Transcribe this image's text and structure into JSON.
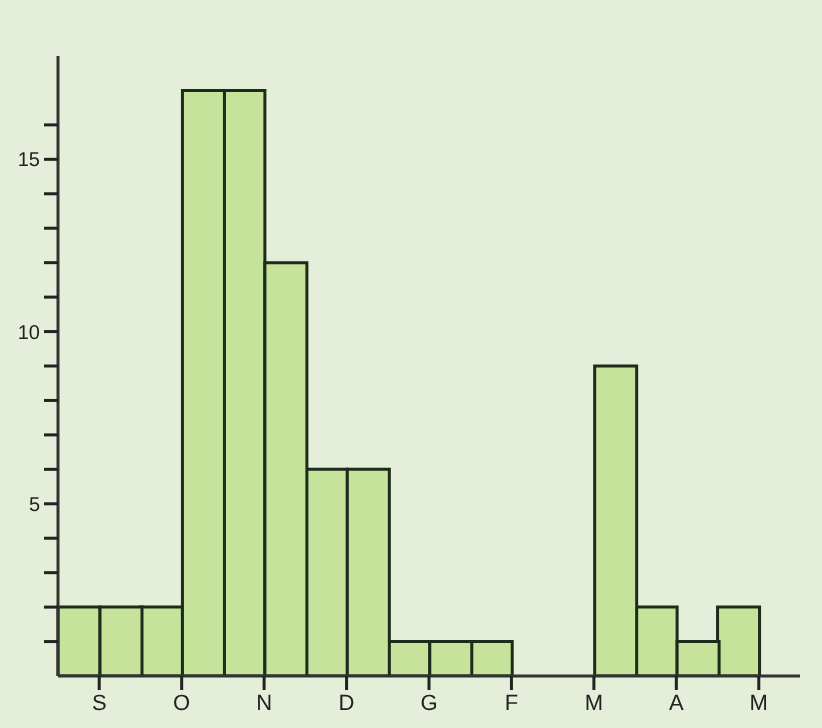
{
  "chart_data": {
    "type": "bar",
    "categories": [
      "S",
      "O",
      "N",
      "D",
      "G",
      "F",
      "M",
      "A",
      "M"
    ],
    "series": [
      {
        "color": "#c6e39b",
        "values": [
          2,
          2,
          17,
          6,
          1,
          1,
          0,
          2,
          2
        ]
      },
      {
        "color": "#c6e39b",
        "values": [
          2,
          17,
          12,
          6,
          1,
          0,
          9,
          1,
          null
        ]
      }
    ],
    "ylim": [
      0,
      18
    ],
    "yticks": [
      {
        "value": 1,
        "label": null
      },
      {
        "value": 2,
        "label": null
      },
      {
        "value": 3,
        "label": null
      },
      {
        "value": 4,
        "label": null
      },
      5,
      {
        "value": 6,
        "label": null
      },
      {
        "value": 7,
        "label": null
      },
      {
        "value": 8,
        "label": null
      },
      {
        "value": 9,
        "label": null
      },
      10,
      {
        "value": 11,
        "label": null
      },
      {
        "value": 12,
        "label": null
      },
      {
        "value": 13,
        "label": null
      },
      {
        "value": 14,
        "label": null
      },
      15,
      {
        "value": 16,
        "label": null
      }
    ],
    "grid": false,
    "legend": false
  }
}
